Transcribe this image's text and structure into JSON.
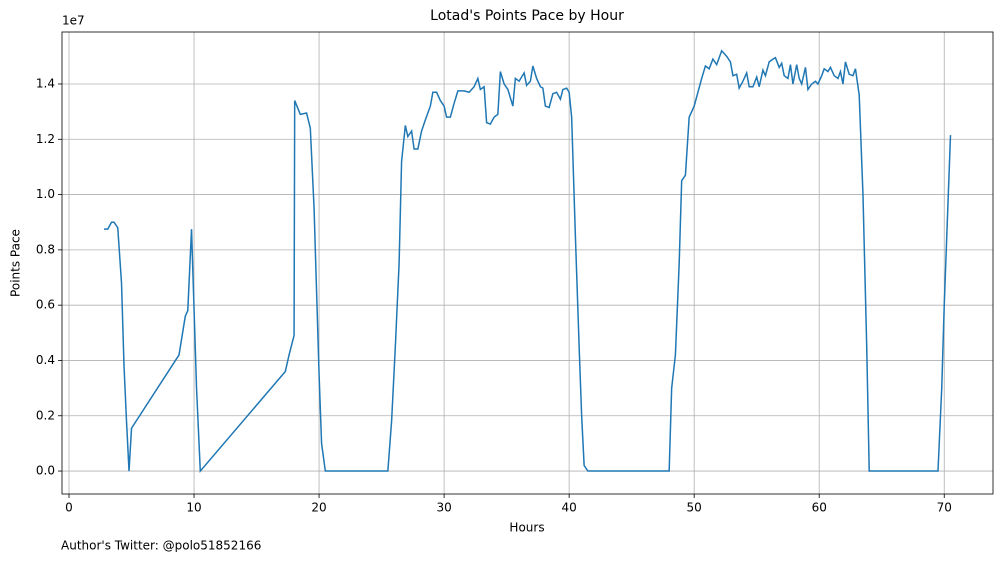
{
  "chart_data": {
    "type": "line",
    "title": "Lotad's Points Pace by Hour",
    "xlabel": "Hours",
    "ylabel": "Points Pace",
    "offset_label": "1e7",
    "annotation": "Author's Twitter: @polo51852166",
    "color": "#1f77b4",
    "grid": true,
    "xlim": [
      -0.56,
      73.9
    ],
    "xticks": [
      0,
      10,
      20,
      30,
      40,
      50,
      60,
      70
    ],
    "ylim": [
      -0.083,
      1.588
    ],
    "yticks": [
      {
        "value": 0,
        "label": "0.0"
      },
      0.2,
      0.4,
      0.6,
      0.8,
      {
        "value": 1,
        "label": "1.0"
      },
      1.2,
      1.4
    ],
    "x": [
      2.8,
      3.1,
      3.4,
      3.6,
      3.9,
      4.2,
      4.4,
      4.6,
      4.8,
      5.0,
      8.8,
      9.3,
      9.5,
      9.8,
      10.2,
      10.5,
      17.3,
      17.6,
      18.0,
      18.05,
      18.5,
      19.0,
      19.3,
      19.6,
      20.0,
      20.2,
      20.5,
      25.5,
      25.8,
      26.1,
      26.4,
      26.6,
      26.9,
      27.1,
      27.4,
      27.6,
      27.9,
      28.2,
      28.5,
      28.9,
      29.1,
      29.4,
      29.7,
      30.0,
      30.2,
      30.5,
      30.8,
      31.1,
      31.6,
      32.0,
      32.4,
      32.7,
      32.9,
      33.2,
      33.4,
      33.7,
      34.0,
      34.3,
      34.5,
      34.8,
      35.1,
      35.5,
      35.7,
      36.0,
      36.4,
      36.6,
      36.9,
      37.1,
      37.4,
      37.7,
      37.9,
      38.1,
      38.4,
      38.7,
      39.0,
      39.3,
      39.5,
      39.8,
      40.0,
      40.2,
      40.5,
      40.8,
      41.0,
      41.2,
      41.5,
      48.0,
      48.2,
      48.5,
      48.8,
      49.0,
      49.3,
      49.6,
      50.0,
      50.3,
      50.6,
      50.9,
      51.2,
      51.5,
      51.8,
      52.2,
      52.6,
      52.9,
      53.1,
      53.4,
      53.6,
      53.9,
      54.2,
      54.4,
      54.7,
      55.0,
      55.2,
      55.5,
      55.7,
      56.0,
      56.3,
      56.5,
      56.8,
      57.0,
      57.2,
      57.5,
      57.7,
      57.9,
      58.2,
      58.4,
      58.6,
      58.9,
      59.1,
      59.4,
      59.7,
      59.9,
      60.2,
      60.4,
      60.7,
      60.9,
      61.2,
      61.5,
      61.7,
      61.9,
      62.1,
      62.4,
      62.7,
      62.9,
      63.2,
      63.5,
      63.8,
      64.0,
      69.5,
      69.8,
      70.0,
      70.5
    ],
    "values": [
      0.875,
      0.875,
      0.9,
      0.9,
      0.88,
      0.68,
      0.38,
      0.18,
      0.0,
      0.155,
      0.42,
      0.56,
      0.58,
      0.875,
      0.3,
      0.0,
      0.36,
      0.42,
      0.49,
      1.34,
      1.29,
      1.295,
      1.24,
      0.95,
      0.35,
      0.1,
      0.0,
      0.0,
      0.18,
      0.45,
      0.75,
      1.12,
      1.25,
      1.21,
      1.23,
      1.165,
      1.165,
      1.23,
      1.27,
      1.32,
      1.37,
      1.37,
      1.34,
      1.32,
      1.28,
      1.28,
      1.33,
      1.375,
      1.375,
      1.37,
      1.39,
      1.42,
      1.38,
      1.39,
      1.26,
      1.255,
      1.28,
      1.29,
      1.445,
      1.4,
      1.38,
      1.32,
      1.42,
      1.41,
      1.44,
      1.395,
      1.41,
      1.465,
      1.42,
      1.39,
      1.385,
      1.32,
      1.315,
      1.365,
      1.37,
      1.345,
      1.38,
      1.385,
      1.37,
      1.28,
      0.85,
      0.45,
      0.2,
      0.02,
      0.0,
      0.0,
      0.3,
      0.42,
      0.75,
      1.05,
      1.07,
      1.28,
      1.32,
      1.37,
      1.42,
      1.465,
      1.455,
      1.49,
      1.47,
      1.52,
      1.5,
      1.48,
      1.43,
      1.435,
      1.385,
      1.41,
      1.44,
      1.39,
      1.39,
      1.425,
      1.39,
      1.45,
      1.43,
      1.48,
      1.49,
      1.495,
      1.46,
      1.475,
      1.43,
      1.42,
      1.47,
      1.4,
      1.47,
      1.42,
      1.4,
      1.46,
      1.38,
      1.4,
      1.41,
      1.4,
      1.43,
      1.455,
      1.445,
      1.46,
      1.43,
      1.42,
      1.445,
      1.4,
      1.48,
      1.435,
      1.43,
      1.455,
      1.36,
      1.0,
      0.45,
      0.0,
      0.0,
      0.3,
      0.6,
      1.215
    ]
  }
}
